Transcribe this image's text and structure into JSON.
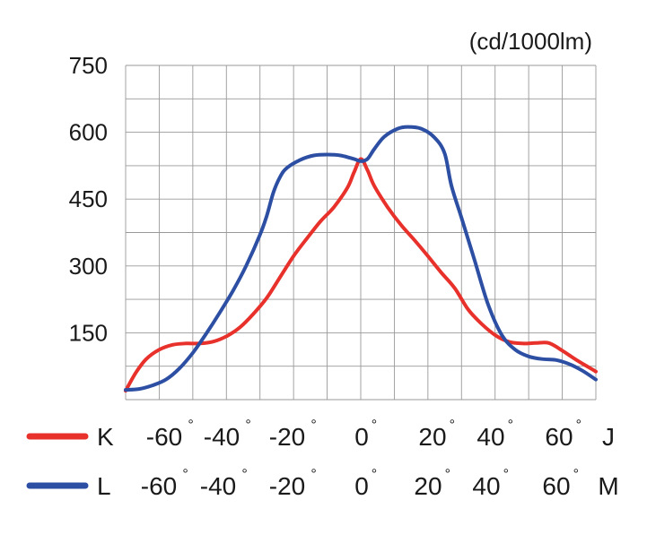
{
  "chart_data": {
    "type": "line",
    "unit": "(cd/1000lm)",
    "y_ticks": [
      150,
      300,
      450,
      600,
      750
    ],
    "ylim": [
      0,
      750
    ],
    "grid": true,
    "x_axes": [
      {
        "series": "K",
        "ticks": [
          "-60°",
          "-40°",
          "-20°",
          "0°",
          "20°",
          "40°",
          "60°"
        ],
        "end_label": "J"
      },
      {
        "series": "L",
        "ticks": [
          "-60°",
          "-40°",
          "-20°",
          "0°",
          "20°",
          "40°",
          "60°"
        ],
        "end_label": "M"
      }
    ],
    "xlim": [
      -70,
      70
    ],
    "series": [
      {
        "name": "K",
        "color": "#e8312b",
        "points": [
          [
            -70,
            20
          ],
          [
            -67,
            60
          ],
          [
            -64,
            90
          ],
          [
            -60,
            112
          ],
          [
            -56,
            123
          ],
          [
            -52,
            126
          ],
          [
            -48,
            126
          ],
          [
            -44,
            130
          ],
          [
            -40,
            142
          ],
          [
            -36,
            162
          ],
          [
            -32,
            192
          ],
          [
            -28,
            228
          ],
          [
            -24,
            275
          ],
          [
            -20,
            322
          ],
          [
            -16,
            362
          ],
          [
            -12,
            400
          ],
          [
            -8,
            432
          ],
          [
            -4,
            475
          ],
          [
            -2,
            510
          ],
          [
            0,
            540
          ],
          [
            2,
            515
          ],
          [
            4,
            480
          ],
          [
            8,
            432
          ],
          [
            12,
            392
          ],
          [
            16,
            358
          ],
          [
            20,
            322
          ],
          [
            24,
            285
          ],
          [
            28,
            250
          ],
          [
            32,
            202
          ],
          [
            36,
            170
          ],
          [
            40,
            145
          ],
          [
            44,
            130
          ],
          [
            48,
            126
          ],
          [
            52,
            127
          ],
          [
            56,
            127
          ],
          [
            60,
            110
          ],
          [
            64,
            90
          ],
          [
            68,
            72
          ],
          [
            70,
            63
          ]
        ]
      },
      {
        "name": "L",
        "color": "#2d4fa3",
        "points": [
          [
            -70,
            22
          ],
          [
            -66,
            24
          ],
          [
            -62,
            32
          ],
          [
            -58,
            45
          ],
          [
            -54,
            70
          ],
          [
            -50,
            105
          ],
          [
            -46,
            148
          ],
          [
            -42,
            195
          ],
          [
            -38,
            245
          ],
          [
            -34,
            302
          ],
          [
            -30,
            370
          ],
          [
            -28,
            412
          ],
          [
            -26,
            465
          ],
          [
            -24,
            500
          ],
          [
            -22,
            520
          ],
          [
            -18,
            538
          ],
          [
            -14,
            548
          ],
          [
            -10,
            550
          ],
          [
            -6,
            548
          ],
          [
            -2,
            540
          ],
          [
            0,
            535
          ],
          [
            2,
            540
          ],
          [
            4,
            562
          ],
          [
            7,
            590
          ],
          [
            11,
            608
          ],
          [
            14,
            612
          ],
          [
            18,
            608
          ],
          [
            22,
            588
          ],
          [
            25,
            552
          ],
          [
            27,
            480
          ],
          [
            30,
            408
          ],
          [
            34,
            310
          ],
          [
            38,
            212
          ],
          [
            42,
            145
          ],
          [
            46,
            112
          ],
          [
            50,
            97
          ],
          [
            54,
            91
          ],
          [
            58,
            89
          ],
          [
            62,
            80
          ],
          [
            66,
            65
          ],
          [
            70,
            45
          ]
        ]
      }
    ]
  }
}
